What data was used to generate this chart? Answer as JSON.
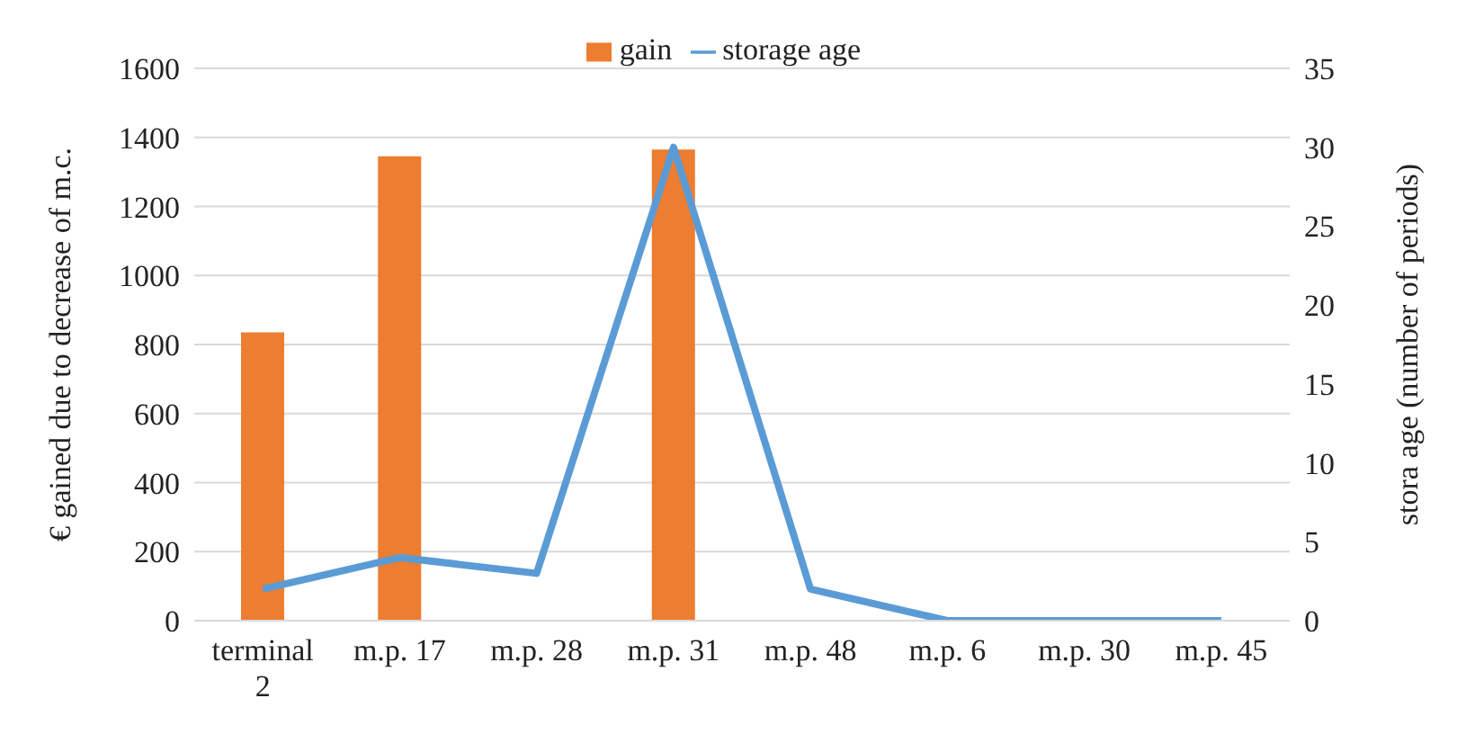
{
  "chart_data": {
    "type": "bar",
    "categories": [
      "terminal 2",
      "m.p. 17",
      "m.p. 28",
      "m.p. 31",
      "m.p. 48",
      "m.p. 6",
      "m.p. 30",
      "m.p. 45"
    ],
    "series": [
      {
        "name": "gain",
        "color": "#ed7d31",
        "values": [
          835,
          1345,
          null,
          1365,
          null,
          null,
          null,
          null
        ]
      },
      {
        "name": "storage age",
        "type": "line",
        "axis": "y2",
        "color": "#5b9bd5",
        "values": [
          2,
          4,
          3,
          30,
          2,
          0,
          0,
          0
        ]
      }
    ],
    "ylabel": "€ gained due to decrease of m.c.",
    "y2label": "stora age (number of periods)",
    "ylim": [
      0,
      1600
    ],
    "yticks": [
      0,
      200,
      400,
      600,
      800,
      1000,
      1200,
      1400,
      1600
    ],
    "y2lim": [
      0,
      35
    ],
    "y2ticks": [
      0,
      5,
      10,
      15,
      20,
      25,
      30,
      35
    ],
    "grid": "y",
    "legend": "top",
    "marker": "none"
  }
}
